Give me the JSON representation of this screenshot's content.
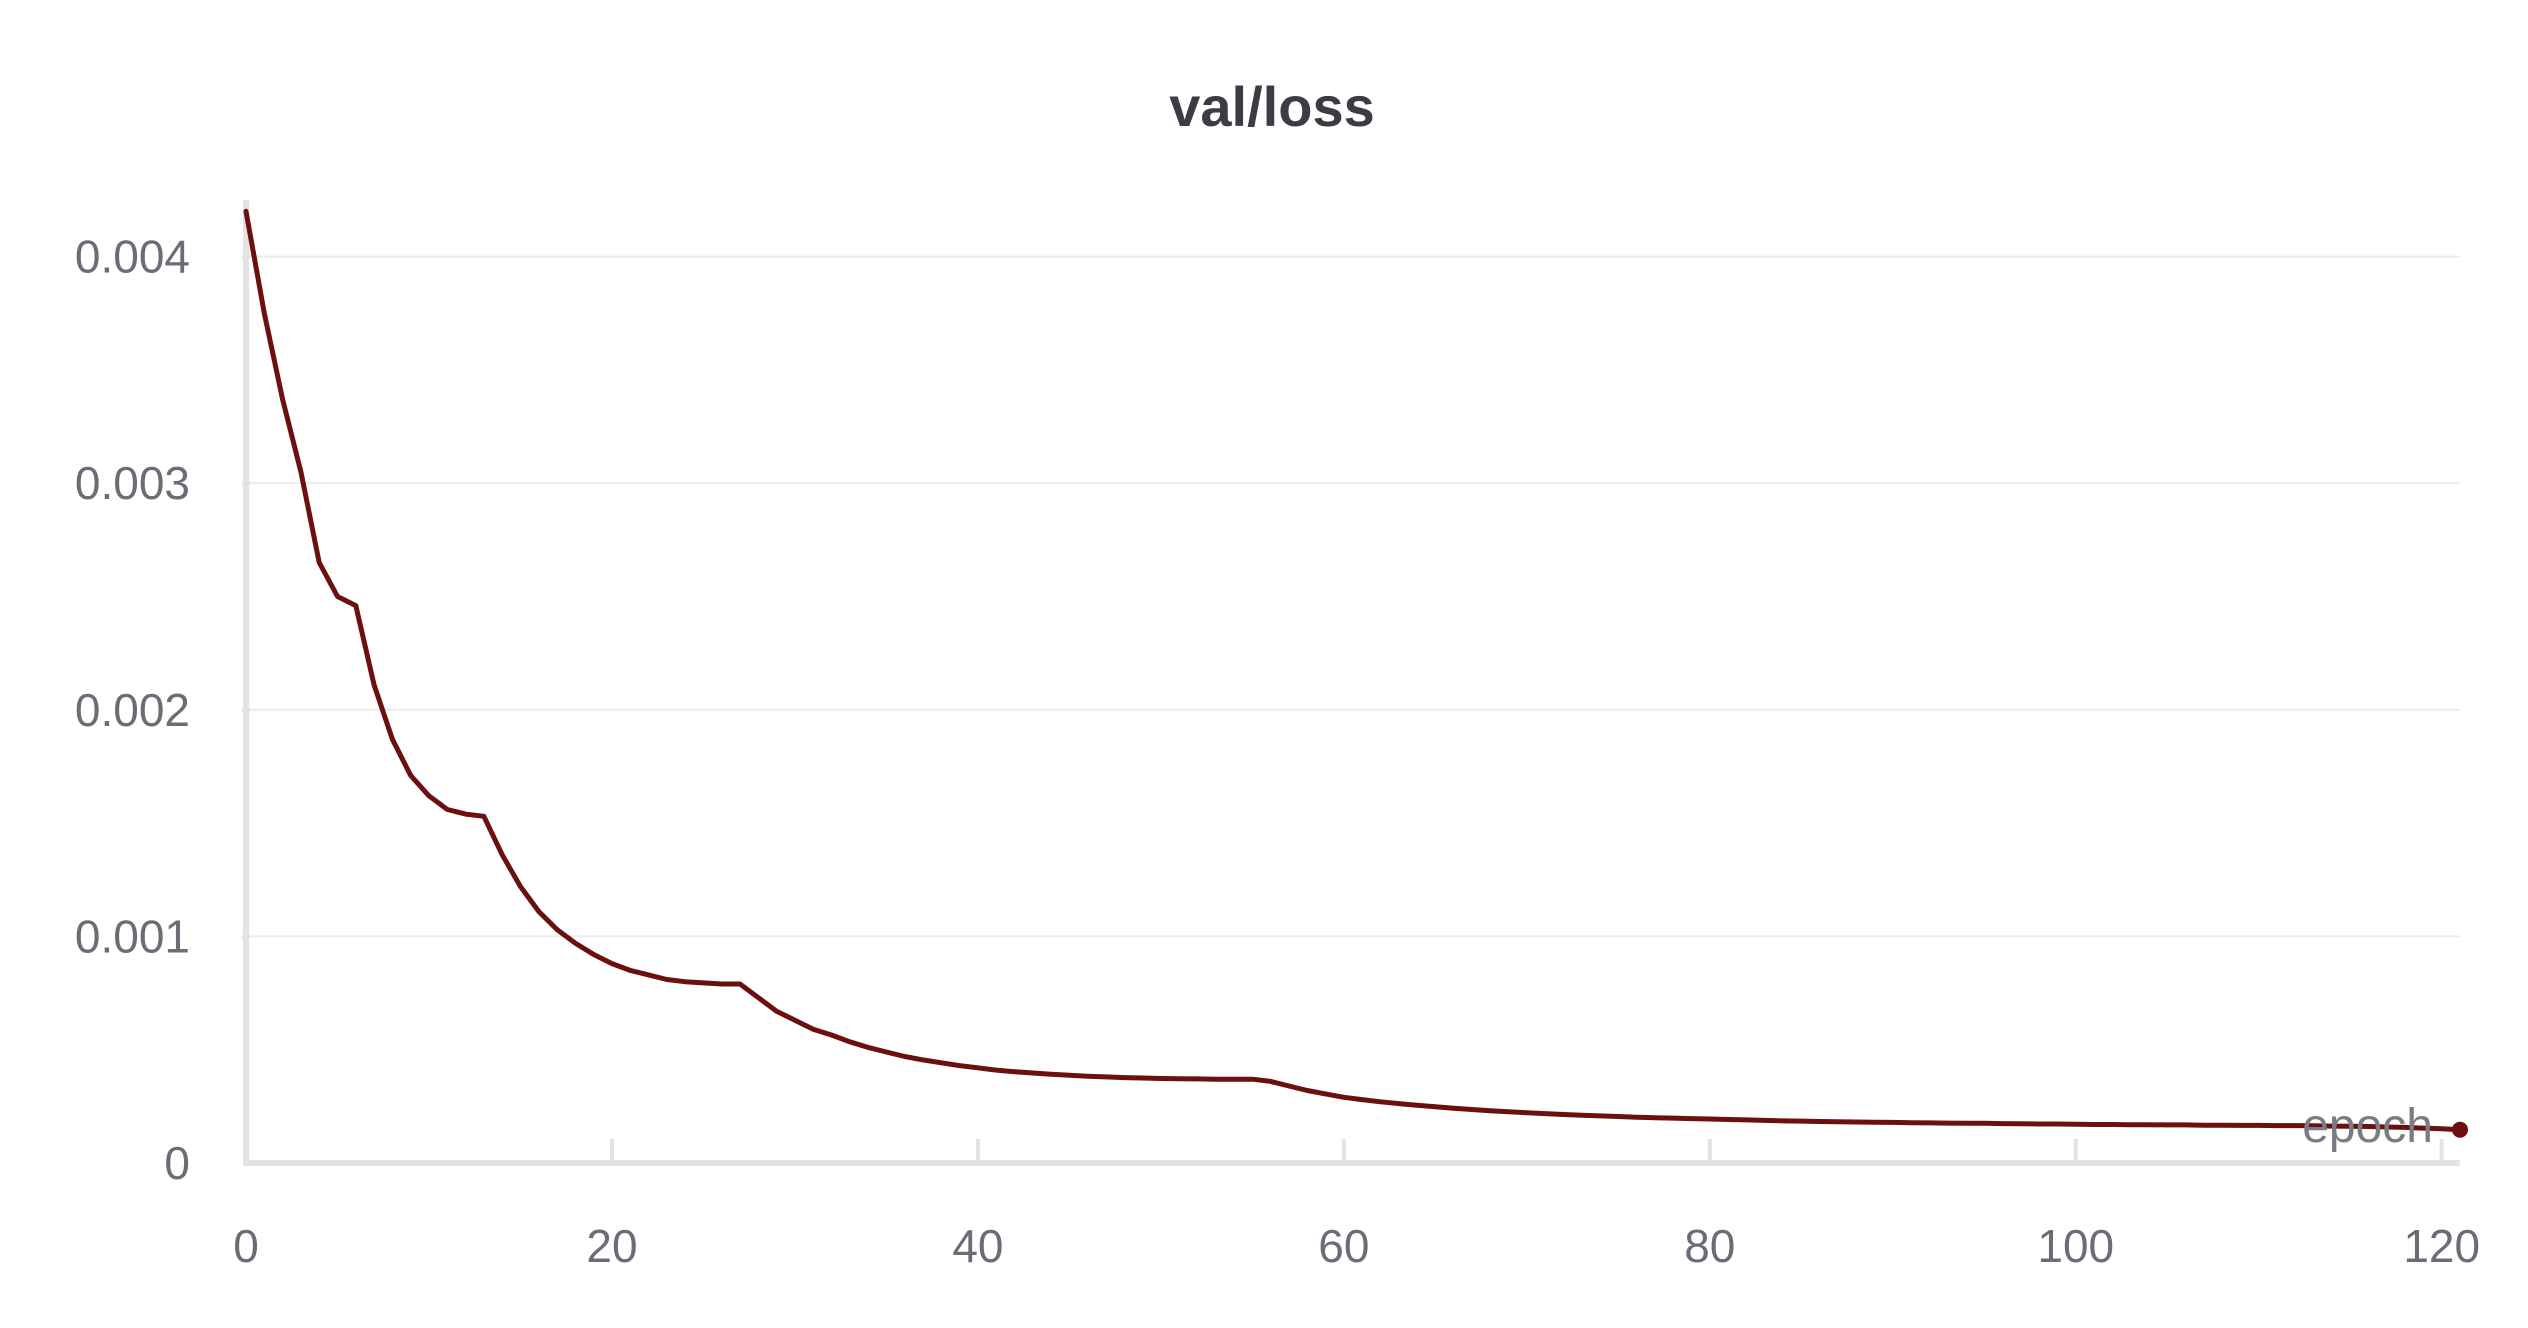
{
  "chart_data": {
    "type": "line",
    "title": "val/loss",
    "xlabel": "epoch",
    "ylabel": "",
    "xlim": [
      0,
      121
    ],
    "ylim": [
      0,
      0.00425
    ],
    "x_ticks": [
      0,
      20,
      40,
      60,
      80,
      100,
      120
    ],
    "x_tick_labels": [
      "0",
      "20",
      "40",
      "60",
      "80",
      "100",
      "120"
    ],
    "y_ticks": [
      0,
      0.001,
      0.002,
      0.003,
      0.004
    ],
    "y_tick_labels": [
      "0",
      "0.001",
      "0.002",
      "0.003",
      "0.004"
    ],
    "grid": true,
    "colors": {
      "series": "#6b0f0f",
      "grid": "#ececec",
      "axis": "#e3e3e3"
    },
    "series": [
      {
        "x": [
          0,
          1,
          2,
          3,
          4,
          5,
          6,
          7,
          8,
          9,
          10,
          11,
          12,
          13,
          14,
          15,
          16,
          17,
          18,
          19,
          20,
          21,
          22,
          23,
          24,
          25,
          26,
          27,
          28,
          29,
          30,
          31,
          32,
          33,
          34,
          35,
          36,
          37,
          38,
          39,
          40,
          41,
          42,
          43,
          44,
          45,
          46,
          47,
          48,
          49,
          50,
          51,
          52,
          53,
          54,
          55,
          56,
          57,
          58,
          59,
          60,
          61,
          62,
          63,
          64,
          65,
          66,
          67,
          68,
          69,
          70,
          71,
          72,
          73,
          74,
          75,
          76,
          77,
          78,
          79,
          80,
          81,
          82,
          83,
          84,
          85,
          86,
          87,
          88,
          89,
          90,
          91,
          92,
          93,
          94,
          95,
          96,
          97,
          98,
          99,
          100,
          101,
          102,
          103,
          104,
          105,
          106,
          107,
          108,
          109,
          110,
          111,
          112,
          113,
          114,
          115,
          116,
          117,
          118,
          119,
          120,
          121
        ],
        "values": [
          0.0042,
          0.00375,
          0.00337,
          0.00305,
          0.00265,
          0.0025,
          0.00246,
          0.00211,
          0.00187,
          0.00171,
          0.00162,
          0.00156,
          0.00154,
          0.00153,
          0.00136,
          0.00122,
          0.00111,
          0.00103,
          0.00097,
          0.00092,
          0.00088,
          0.00085,
          0.00083,
          0.00081,
          0.0008,
          0.000795,
          0.00079,
          0.00079,
          0.00073,
          0.00067,
          0.00063,
          0.00059,
          0.000565,
          0.000535,
          0.00051,
          0.00049,
          0.00047,
          0.000455,
          0.000442,
          0.00043,
          0.00042,
          0.00041,
          0.000403,
          0.000397,
          0.000392,
          0.000387,
          0.000383,
          0.00038,
          0.000377,
          0.000375,
          0.000373,
          0.000372,
          0.000371,
          0.00037,
          0.00037,
          0.00037,
          0.00036,
          0.00034,
          0.00032,
          0.000305,
          0.00029,
          0.00028,
          0.00027,
          0.000262,
          0.000255,
          0.000248,
          0.000242,
          0.000236,
          0.000231,
          0.000226,
          0.000222,
          0.000218,
          0.000214,
          0.000211,
          0.000208,
          0.000205,
          0.000202,
          0.0002,
          0.000198,
          0.000196,
          0.000194,
          0.000192,
          0.00019,
          0.000188,
          0.000186,
          0.000185,
          0.000183,
          0.000182,
          0.000181,
          0.00018,
          0.000179,
          0.000178,
          0.000177,
          0.000176,
          0.000175,
          0.000175,
          0.000174,
          0.000173,
          0.000172,
          0.000172,
          0.000171,
          0.00017,
          0.00017,
          0.000169,
          0.000169,
          0.000168,
          0.000168,
          0.000167,
          0.000167,
          0.000166,
          0.000166,
          0.000165,
          0.000165,
          0.000164,
          0.000163,
          0.000162,
          0.000161,
          0.000159,
          0.000157,
          0.000154,
          0.000151,
          0.000147
        ]
      }
    ]
  }
}
